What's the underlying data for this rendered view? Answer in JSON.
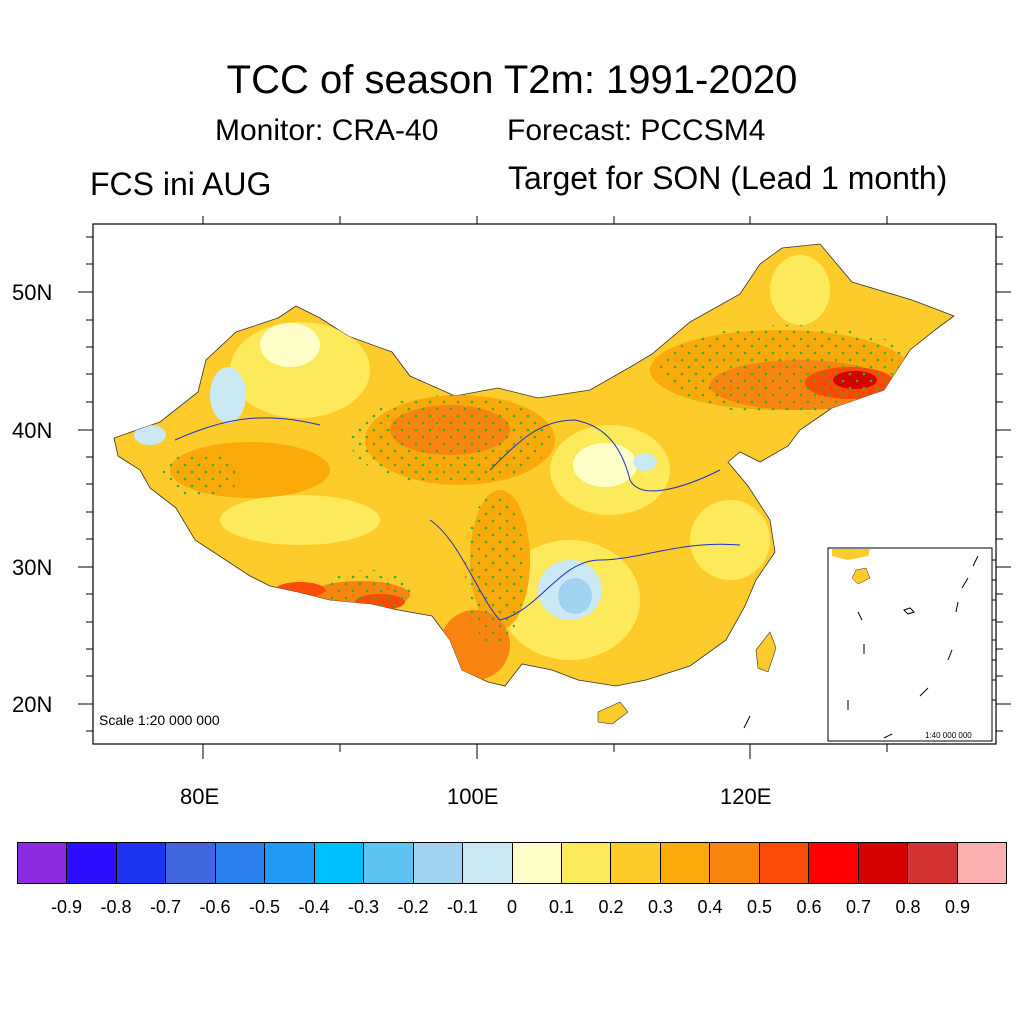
{
  "header": {
    "title": "TCC of season T2m: 1991-2020",
    "monitor": "Monitor: CRA-40",
    "forecast": "Forecast: PCCSM4",
    "left_label": "FCS ini AUG",
    "right_label": "Target for SON (Lead 1 month)"
  },
  "axes": {
    "lat_labels": [
      "50N",
      "40N",
      "30N",
      "20N"
    ],
    "lon_labels": [
      "80E",
      "100E",
      "120E"
    ]
  },
  "scale": {
    "main": "Scale 1:20 000 000",
    "inset": "1:40 000 000"
  },
  "colorbar": {
    "colors": [
      "#8a2be2",
      "#2e0eff",
      "#1b35f0",
      "#3f66dc",
      "#2a7fef",
      "#1f9af5",
      "#00bfff",
      "#5cc3f2",
      "#9fd3ef",
      "#cbe8f5",
      "#fffec8",
      "#fdea5a",
      "#fdcb2a",
      "#fca90a",
      "#f98510",
      "#fb4b09",
      "#ff0000",
      "#d50000",
      "#d43333",
      "#feb0b0"
    ],
    "labels": [
      "-0.9",
      "-0.8",
      "-0.7",
      "-0.6",
      "-0.5",
      "-0.4",
      "-0.3",
      "-0.2",
      "-0.1",
      "0",
      "0.1",
      "0.2",
      "0.3",
      "0.4",
      "0.5",
      "0.6",
      "0.7",
      "0.8",
      "0.9"
    ]
  }
}
